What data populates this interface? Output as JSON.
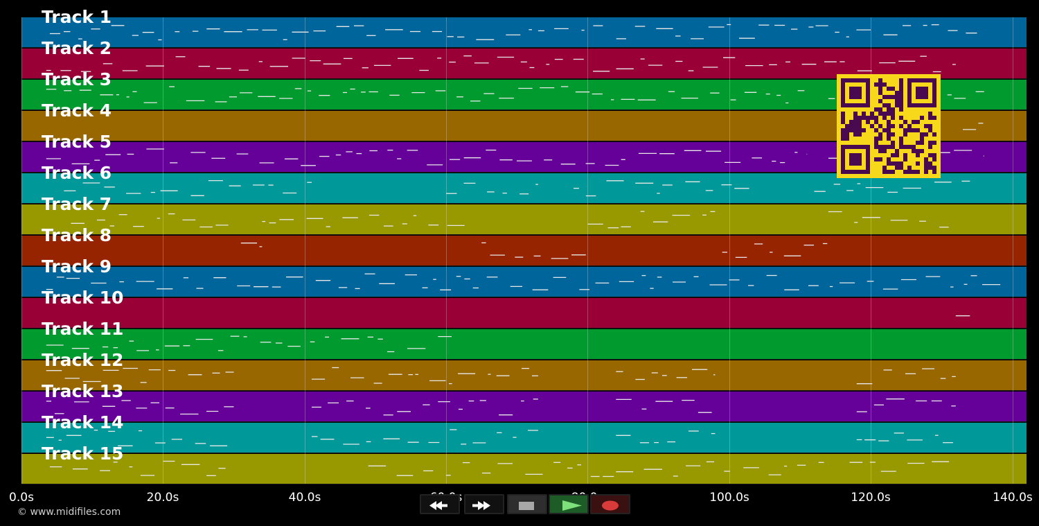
{
  "app": {
    "watermark": "© www.midifiles.com"
  },
  "tracks": [
    {
      "label": "Track 1",
      "color": "#00659b"
    },
    {
      "label": "Track 2",
      "color": "#980036"
    },
    {
      "label": "Track 3",
      "color": "#009a2e"
    },
    {
      "label": "Track 4",
      "color": "#996700"
    },
    {
      "label": "Track 5",
      "color": "#650098"
    },
    {
      "label": "Track 6",
      "color": "#009899"
    },
    {
      "label": "Track 7",
      "color": "#989800"
    },
    {
      "label": "Track 8",
      "color": "#972400"
    },
    {
      "label": "Track 9",
      "color": "#00659b"
    },
    {
      "label": "Track 10",
      "color": "#980036"
    },
    {
      "label": "Track 11",
      "color": "#009a2e"
    },
    {
      "label": "Track 12",
      "color": "#996700"
    },
    {
      "label": "Track 13",
      "color": "#650098"
    },
    {
      "label": "Track 14",
      "color": "#009899"
    },
    {
      "label": "Track 15",
      "color": "#989800"
    }
  ],
  "timeline": {
    "start_s": 0,
    "end_s": 142,
    "ticks": [
      "0.0s",
      "20.0s",
      "40.0s",
      "60.0s",
      "80.0s",
      "100.0s",
      "120.0s",
      "140.0s"
    ],
    "tick_values": [
      0,
      20,
      40,
      60,
      80,
      100,
      120,
      140
    ]
  },
  "transport": {
    "buttons": [
      {
        "name": "rewind-button",
        "icon": "rewind-icon"
      },
      {
        "name": "fast-forward-button",
        "icon": "fast-forward-icon"
      },
      {
        "name": "stop-button",
        "icon": "stop-icon"
      },
      {
        "name": "play-button",
        "icon": "play-icon"
      },
      {
        "name": "record-button",
        "icon": "record-icon"
      }
    ]
  },
  "overlay": {
    "qr_color": "#f7d81b",
    "qr_dark": "#4a0a4f"
  }
}
